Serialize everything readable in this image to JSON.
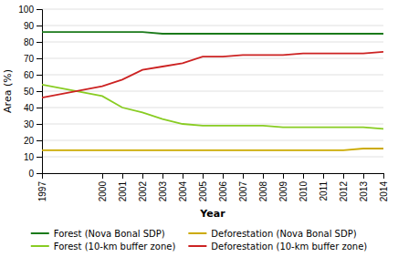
{
  "chart_data": {
    "type": "line",
    "x_label": "Year",
    "y_label": "Area (%)",
    "x": [
      1997,
      2000,
      2001,
      2002,
      2003,
      2004,
      2005,
      2006,
      2007,
      2008,
      2009,
      2010,
      2011,
      2012,
      2013,
      2014
    ],
    "series": [
      {
        "name": "Forest (Nova Bonal SDP)",
        "color": "#1a7a1a",
        "values": [
          86,
          86,
          86,
          86,
          85,
          85,
          85,
          85,
          85,
          85,
          85,
          85,
          85,
          85,
          85,
          85
        ]
      },
      {
        "name": "Deforestation (Nova Bonal SDP)",
        "color": "#ccaa00",
        "values": [
          14,
          14,
          14,
          14,
          14,
          14,
          14,
          14,
          14,
          14,
          14,
          14,
          14,
          14,
          15,
          15
        ]
      },
      {
        "name": "Forest (10-km buffer zone)",
        "color": "#88cc22",
        "values": [
          54,
          47,
          40,
          37,
          33,
          30,
          29,
          29,
          29,
          29,
          28,
          28,
          28,
          28,
          28,
          27
        ]
      },
      {
        "name": "Deforestation (10-km buffer zone)",
        "color": "#cc2222",
        "values": [
          46,
          53,
          57,
          63,
          65,
          67,
          71,
          71,
          72,
          72,
          72,
          73,
          73,
          73,
          73,
          74
        ]
      }
    ],
    "xlim": [
      1997,
      2014
    ],
    "xticks": [
      1997,
      2000,
      2001,
      2002,
      2003,
      2004,
      2005,
      2006,
      2007,
      2008,
      2009,
      2010,
      2011,
      2012,
      2013,
      2014
    ],
    "ylim": [
      0,
      100
    ],
    "yticks": [
      0,
      10,
      20,
      30,
      40,
      50,
      60,
      70,
      80,
      90,
      100
    ],
    "grid": true,
    "legend": "bottom"
  }
}
